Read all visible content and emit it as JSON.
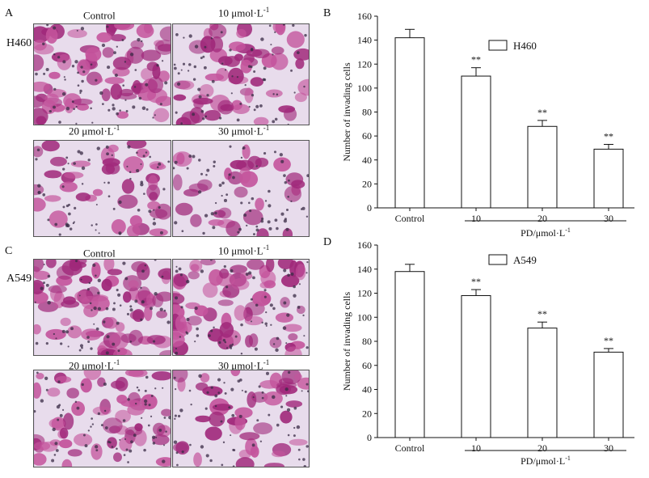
{
  "panels": {
    "A": {
      "letter": "A",
      "row_label": "H460",
      "images": [
        {
          "label": "Control",
          "sup": ""
        },
        {
          "label": "10 μmol·L",
          "sup": "-1"
        },
        {
          "label": "20 μmol·L",
          "sup": "-1"
        },
        {
          "label": "30 μmol·L",
          "sup": "-1"
        }
      ]
    },
    "C": {
      "letter": "C",
      "row_label": "A549",
      "images": [
        {
          "label": "Control",
          "sup": ""
        },
        {
          "label": "10 μmol·L",
          "sup": "-1"
        },
        {
          "label": "20 μmol·L",
          "sup": "-1"
        },
        {
          "label": "30 μmol·L",
          "sup": "-1"
        }
      ]
    }
  },
  "colors": {
    "stain_dark": "#a0287a",
    "stain_mid": "#c4549c",
    "background": "#e8dcec",
    "nuclei": "#3a2b45",
    "bar_fill": "#ffffff",
    "axis": "#111111"
  },
  "chart_data": [
    {
      "panel": "B",
      "type": "bar",
      "ylabel": "Number of invading cells",
      "xlabel": "PD/μmol·L",
      "xlabel_sup": "-1",
      "legend": "H460",
      "legend_position": "top-right",
      "ylim": [
        0,
        160
      ],
      "yticks": [
        0,
        20,
        40,
        60,
        80,
        100,
        120,
        140,
        160
      ],
      "categories": [
        "Control",
        "10",
        "20",
        "30"
      ],
      "values": [
        142,
        110,
        68,
        49
      ],
      "errors": [
        7,
        7,
        5,
        4
      ],
      "significance": [
        "",
        "**",
        "**",
        "**"
      ]
    },
    {
      "panel": "D",
      "type": "bar",
      "ylabel": "Number of invading cells",
      "xlabel": "PD/μmol·L",
      "xlabel_sup": "-1",
      "legend": "A549",
      "legend_position": "top-right",
      "ylim": [
        0,
        160
      ],
      "yticks": [
        0,
        20,
        40,
        60,
        80,
        100,
        120,
        140,
        160
      ],
      "categories": [
        "Control",
        "10",
        "20",
        "30"
      ],
      "values": [
        138,
        118,
        91,
        71
      ],
      "errors": [
        6,
        5,
        5,
        3
      ],
      "significance": [
        "",
        "**",
        "**",
        "**"
      ]
    }
  ]
}
